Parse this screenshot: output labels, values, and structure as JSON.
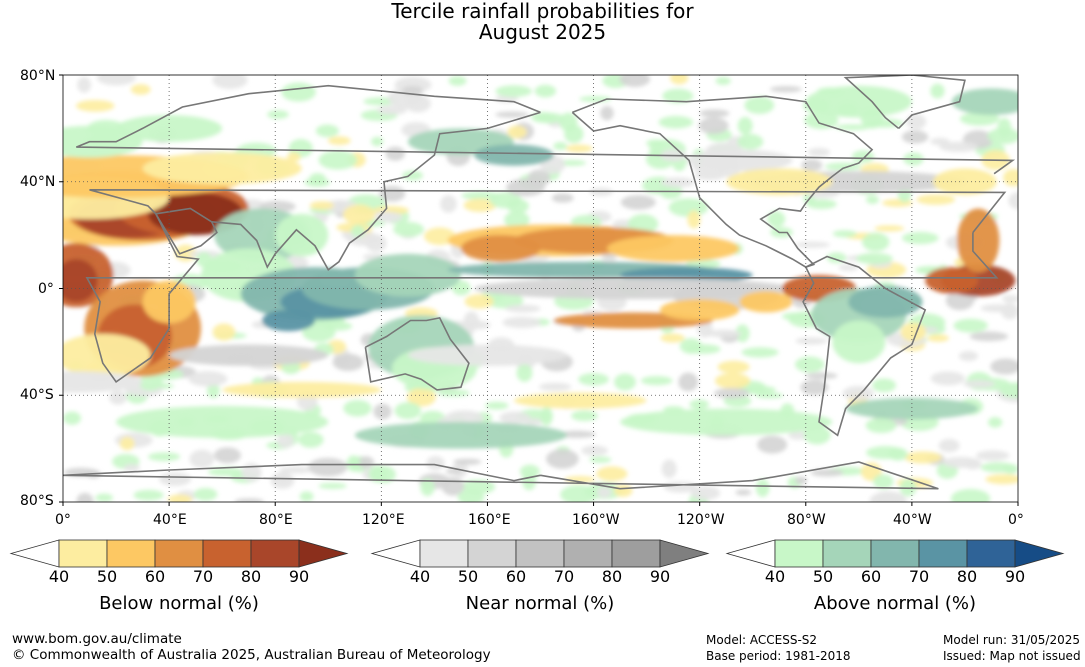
{
  "title": {
    "line1": "Tercile rainfall probabilities for",
    "line2": "August 2025"
  },
  "map": {
    "lat_labels": [
      "80°N",
      "40°N",
      "0°",
      "40°S",
      "80°S"
    ],
    "lon_labels": [
      "0°",
      "40°E",
      "80°E",
      "120°E",
      "160°E",
      "160°W",
      "120°W",
      "80°W",
      "40°W",
      "0°"
    ],
    "ocean_color": "#ffffff",
    "coast_color": "#777777"
  },
  "legends": [
    {
      "label": "Below normal (%)",
      "ticks": [
        "40",
        "50",
        "60",
        "70",
        "80",
        "90"
      ],
      "colors": [
        "#ffffff",
        "#fdeda0",
        "#fdc863",
        "#e08f42",
        "#c8622f",
        "#a9462a",
        "#8b2f1c"
      ]
    },
    {
      "label": "Near normal (%)",
      "ticks": [
        "40",
        "50",
        "60",
        "70",
        "80",
        "90"
      ],
      "colors": [
        "#ffffff",
        "#e6e6e6",
        "#d4d4d4",
        "#c2c2c2",
        "#b0b0b0",
        "#9e9e9e",
        "#7f7f7f"
      ]
    },
    {
      "label": "Above normal (%)",
      "ticks": [
        "40",
        "50",
        "60",
        "70",
        "80",
        "90"
      ],
      "colors": [
        "#ffffff",
        "#c8f7c8",
        "#a5d5b9",
        "#82b6ad",
        "#5a94a4",
        "#2f6397",
        "#164c86"
      ]
    }
  ],
  "footer": {
    "website": "www.bom.gov.au/climate",
    "copyright": "© Commonwealth of Australia 2025, Australian Bureau of Meteorology",
    "model": "Model: ACCESS-S2",
    "base_period": "Base period: 1981-2018",
    "model_run": "Model run: 31/05/2025",
    "issued": "Issued: Map not issued"
  }
}
